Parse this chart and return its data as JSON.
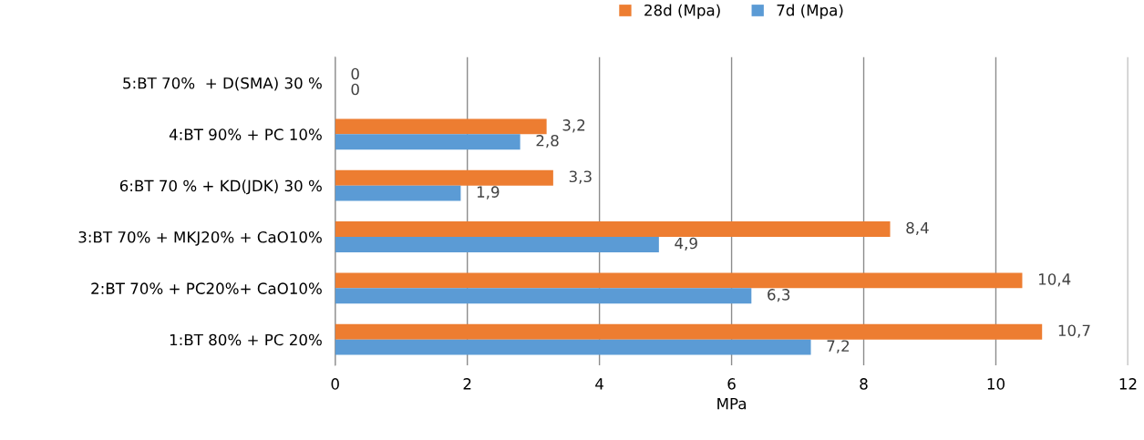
{
  "chart_data": {
    "type": "bar",
    "orientation": "horizontal",
    "xlabel": "MPa",
    "categories": [
      "5:BT 70%  + D(SMA) 30 %",
      "4:BT 90% + PC 10%",
      "6:BT 70 % + KD(JDK) 30 %",
      "3:BT 70% + MKJ20% + CaO10%",
      "2:BT 70% + PC20%+ CaO10%",
      "1:BT 80% + PC 20%"
    ],
    "series": [
      {
        "name": "28d (Mpa)",
        "color": "#ed7d31",
        "values": [
          0,
          3.2,
          3.3,
          8.4,
          10.4,
          10.7
        ],
        "value_labels": [
          "0",
          "3,2",
          "3,3",
          "8,4",
          "10,4",
          "10,7"
        ]
      },
      {
        "name": "7d (Mpa)",
        "color": "#5b9bd5",
        "values": [
          0,
          2.8,
          1.9,
          4.9,
          6.3,
          7.2
        ],
        "value_labels": [
          "0",
          "2,8",
          "1,9",
          "4,9",
          "6,3",
          "7,2"
        ]
      }
    ],
    "xlim": [
      0,
      12
    ],
    "xticks": [
      0,
      2,
      4,
      6,
      8,
      10,
      12
    ],
    "grid": "x",
    "legend": "top"
  }
}
